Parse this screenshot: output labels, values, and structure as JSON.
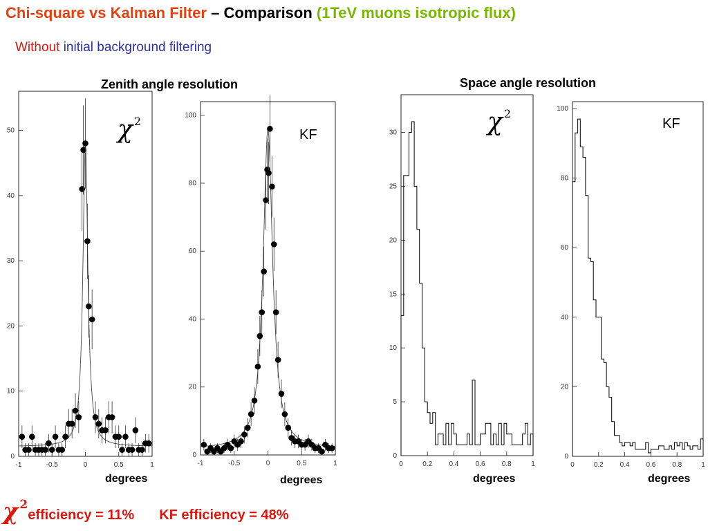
{
  "title": {
    "part1": "Chi-square vs Kalman Filter",
    "part2": " – Comparison ",
    "part3": "(1TeV muons isotropic flux)"
  },
  "subtitle": {
    "part1": "Without ",
    "part2": "initial background filtering"
  },
  "sections": {
    "zenith": "Zenith angle resolution",
    "space": "Space angle resolution"
  },
  "panel_labels": {
    "chi_symbol": "χ",
    "chi_exponent": "2",
    "kf": "KF"
  },
  "axis_xlabel": "degrees",
  "footer": {
    "chi_symbol": "χ",
    "chi_exponent": "2",
    "chi_efficiency": "efficiency = 11%",
    "kf_efficiency": "KF efficiency = 48%"
  },
  "colors": {
    "title_red": "#e8400c",
    "title_green": "#7ab800",
    "subtitle_red": "#d9180f",
    "subtitle_blue": "#2f2fa0",
    "footer_red": "#d9180f"
  },
  "chart_data": [
    {
      "type": "scatter",
      "panel": "zenith-chi2",
      "title": "Zenith angle resolution",
      "xlabel": "degrees",
      "xlim": [
        -1,
        1
      ],
      "ylim": [
        0,
        56
      ],
      "xticks": [
        -1,
        -0.5,
        0,
        0.5,
        1
      ],
      "xtick_labels": [
        "-1",
        "-0.5",
        "0",
        "0.5",
        "1"
      ],
      "yticks": [
        0,
        10,
        20,
        30,
        40,
        50
      ],
      "fit_curve": true,
      "x": [
        -0.95,
        -0.9,
        -0.85,
        -0.8,
        -0.75,
        -0.7,
        -0.65,
        -0.6,
        -0.55,
        -0.5,
        -0.45,
        -0.4,
        -0.35,
        -0.3,
        -0.25,
        -0.2,
        -0.15,
        -0.1,
        -0.05,
        -0.03,
        0.0,
        0.03,
        0.05,
        0.1,
        0.15,
        0.2,
        0.25,
        0.3,
        0.35,
        0.4,
        0.45,
        0.5,
        0.55,
        0.6,
        0.65,
        0.7,
        0.75,
        0.8,
        0.85,
        0.9,
        0.95
      ],
      "y": [
        3,
        1,
        1,
        3,
        1,
        1,
        1,
        1,
        2,
        1,
        3,
        1,
        1,
        3,
        5,
        5,
        7,
        6,
        41,
        47,
        48,
        33,
        23,
        21,
        6,
        5,
        4,
        4,
        6,
        6,
        3,
        3,
        1,
        3,
        1,
        1,
        4,
        1,
        1,
        2,
        2
      ]
    },
    {
      "type": "scatter",
      "panel": "zenith-kf",
      "xlabel": "degrees",
      "xlim": [
        -1,
        1
      ],
      "ylim": [
        0,
        104
      ],
      "xticks": [
        -1,
        -0.5,
        0,
        0.5,
        1
      ],
      "xtick_labels": [
        "-1",
        "-0.5",
        "0",
        "0.5",
        "1"
      ],
      "yticks": [
        0,
        20,
        40,
        60,
        80,
        100
      ],
      "fit_curve": true,
      "x": [
        -0.95,
        -0.9,
        -0.85,
        -0.8,
        -0.75,
        -0.7,
        -0.65,
        -0.6,
        -0.55,
        -0.5,
        -0.45,
        -0.4,
        -0.35,
        -0.3,
        -0.25,
        -0.2,
        -0.15,
        -0.12,
        -0.09,
        -0.06,
        -0.03,
        -0.01,
        0.01,
        0.03,
        0.06,
        0.09,
        0.12,
        0.15,
        0.2,
        0.25,
        0.3,
        0.35,
        0.4,
        0.45,
        0.5,
        0.55,
        0.6,
        0.65,
        0.7,
        0.75,
        0.8,
        0.85,
        0.9,
        0.95
      ],
      "y": [
        3,
        1,
        2,
        1,
        2,
        1,
        2,
        3,
        2,
        4,
        3,
        4,
        6,
        8,
        12,
        16,
        26,
        35,
        42,
        54,
        75,
        84,
        83,
        96,
        79,
        62,
        42,
        28,
        18,
        12,
        8,
        5,
        4,
        4,
        3,
        3,
        4,
        3,
        2,
        2,
        1,
        3,
        2,
        2
      ]
    },
    {
      "type": "area",
      "panel": "space-chi2",
      "title": "Space angle resolution",
      "xlabel": "degrees",
      "xlim": [
        0,
        1
      ],
      "ylim": [
        0,
        33.5
      ],
      "xticks": [
        0,
        0.2,
        0.4,
        0.6,
        0.8,
        1
      ],
      "xtick_labels": [
        "0",
        "0.2",
        "0.4",
        "0.6",
        "0.8",
        "1"
      ],
      "yticks": [
        0,
        5,
        10,
        15,
        20,
        25,
        30
      ],
      "bin_width": 0.02,
      "values": [
        13,
        26,
        26,
        30,
        31,
        25,
        21,
        16,
        10,
        5,
        4,
        3,
        4,
        1,
        2,
        2,
        1,
        3,
        1,
        3,
        2,
        1,
        1,
        1,
        1,
        2,
        1,
        7,
        1,
        1,
        2,
        2,
        3,
        3,
        1,
        2,
        1,
        3,
        1,
        3,
        2,
        2,
        1,
        1,
        1,
        1,
        2,
        3,
        1,
        2
      ]
    },
    {
      "type": "area",
      "panel": "space-kf",
      "xlabel": "degrees",
      "xlim": [
        0,
        1
      ],
      "ylim": [
        0,
        102
      ],
      "xticks": [
        0,
        0.2,
        0.4,
        0.6,
        0.8,
        1
      ],
      "xtick_labels": [
        "0",
        "0.2",
        "0.4",
        "0.6",
        "0.8",
        "1"
      ],
      "yticks": [
        0,
        20,
        40,
        60,
        80,
        100
      ],
      "bin_width": 0.02,
      "values": [
        79,
        93,
        97,
        89,
        86,
        75,
        57,
        56,
        45,
        40,
        40,
        28,
        27,
        20,
        17,
        10,
        6,
        6,
        4,
        3,
        4,
        4,
        3,
        4,
        2,
        2,
        2,
        2,
        4,
        1,
        2,
        2,
        2,
        3,
        3,
        2,
        2,
        3,
        2,
        4,
        3,
        4,
        2,
        4,
        3,
        2,
        3,
        3,
        2,
        5
      ]
    }
  ]
}
